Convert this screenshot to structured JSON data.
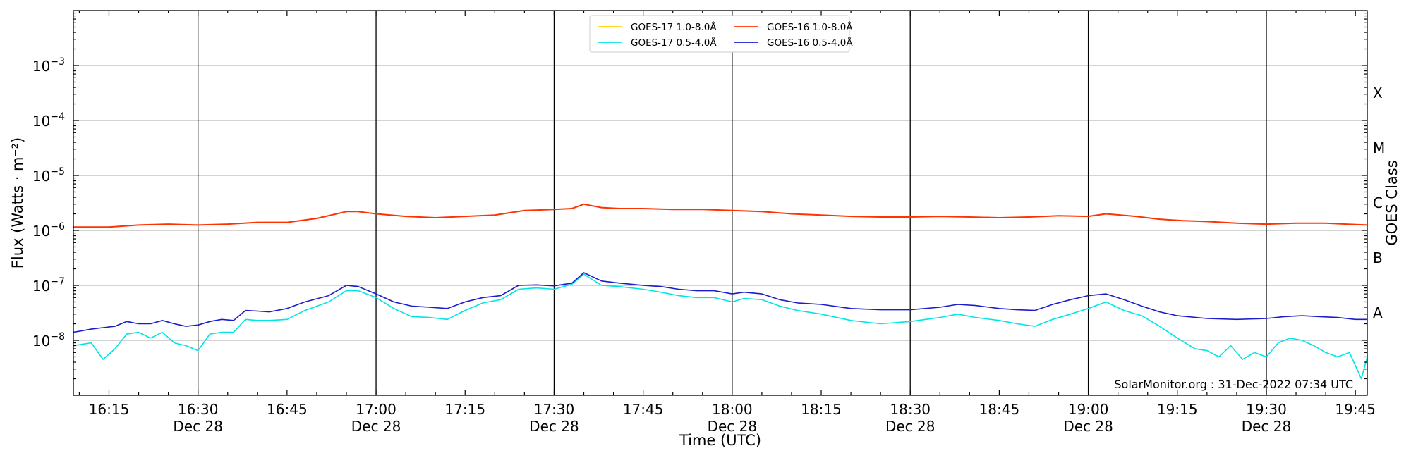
{
  "chart_data": {
    "type": "line",
    "xlabel": "Time (UTC)",
    "ylabel": "Flux (Watts · m⁻²)",
    "right_label": "GOES Class",
    "watermark": "SolarMonitor.org : 31-Dec-2022 07:34 UTC",
    "y_scale": "log",
    "ylim": [
      1e-09,
      0.01
    ],
    "x_range": [
      "16:09",
      "19:47"
    ],
    "grid": "horizontal at each decade",
    "legend_position": "top-center",
    "x_ticks": [
      {
        "time": "16:15",
        "date": ""
      },
      {
        "time": "16:30",
        "date": "Dec 28"
      },
      {
        "time": "16:45",
        "date": ""
      },
      {
        "time": "17:00",
        "date": "Dec 28"
      },
      {
        "time": "17:15",
        "date": ""
      },
      {
        "time": "17:30",
        "date": "Dec 28"
      },
      {
        "time": "17:45",
        "date": ""
      },
      {
        "time": "18:00",
        "date": "Dec 28"
      },
      {
        "time": "18:15",
        "date": ""
      },
      {
        "time": "18:30",
        "date": "Dec 28"
      },
      {
        "time": "18:45",
        "date": ""
      },
      {
        "time": "19:00",
        "date": "Dec 28"
      },
      {
        "time": "19:15",
        "date": ""
      },
      {
        "time": "19:30",
        "date": "Dec 28"
      },
      {
        "time": "19:45",
        "date": ""
      }
    ],
    "vertical_lines": [
      "16:30",
      "17:00",
      "17:30",
      "18:00",
      "18:30",
      "19:00",
      "19:30"
    ],
    "y_ticks": [
      {
        "value": 1e-08,
        "mantissa": "10",
        "exp": "−8"
      },
      {
        "value": 1e-07,
        "mantissa": "10",
        "exp": "−7"
      },
      {
        "value": 1e-06,
        "mantissa": "10",
        "exp": "−6"
      },
      {
        "value": 1e-05,
        "mantissa": "10",
        "exp": "−5"
      },
      {
        "value": 0.0001,
        "mantissa": "10",
        "exp": "−4"
      },
      {
        "value": 0.001,
        "mantissa": "10",
        "exp": "−3"
      }
    ],
    "goes_classes": [
      {
        "label": "A",
        "value": 1e-08
      },
      {
        "label": "B",
        "value": 1e-07
      },
      {
        "label": "C",
        "value": 1e-06
      },
      {
        "label": "M",
        "value": 1e-05
      },
      {
        "label": "X",
        "value": 0.0001
      }
    ],
    "series": [
      {
        "name": "GOES-17 1.0-8.0Å",
        "color": "#ffd700",
        "x": [],
        "y": []
      },
      {
        "name": "GOES-17 0.5-4.0Å",
        "color": "#00e5e5",
        "x": [
          "16:09",
          "16:12",
          "16:14",
          "16:16",
          "16:18",
          "16:20",
          "16:22",
          "16:24",
          "16:26",
          "16:28",
          "16:30",
          "16:32",
          "16:34",
          "16:36",
          "16:38",
          "16:40",
          "16:42",
          "16:45",
          "16:48",
          "16:52",
          "16:55",
          "16:57",
          "17:00",
          "17:03",
          "17:06",
          "17:09",
          "17:12",
          "17:15",
          "17:18",
          "17:21",
          "17:24",
          "17:27",
          "17:30",
          "17:33",
          "17:35",
          "17:38",
          "17:41",
          "17:45",
          "17:48",
          "17:51",
          "17:54",
          "17:57",
          "18:00",
          "18:02",
          "18:05",
          "18:08",
          "18:11",
          "18:15",
          "18:20",
          "18:25",
          "18:30",
          "18:35",
          "18:38",
          "18:41",
          "18:45",
          "18:48",
          "18:51",
          "18:54",
          "18:57",
          "19:00",
          "19:03",
          "19:06",
          "19:09",
          "19:12",
          "19:15",
          "19:18",
          "19:20",
          "19:22",
          "19:24",
          "19:26",
          "19:28",
          "19:30",
          "19:32",
          "19:34",
          "19:36",
          "19:38",
          "19:40",
          "19:42",
          "19:44",
          "19:46",
          "19:47"
        ],
        "y": [
          8e-09,
          9e-09,
          4.5e-09,
          7e-09,
          1.3e-08,
          1.4e-08,
          1.1e-08,
          1.4e-08,
          9e-09,
          8e-09,
          6.5e-09,
          1.3e-08,
          1.4e-08,
          1.4e-08,
          2.4e-08,
          2.3e-08,
          2.3e-08,
          2.4e-08,
          3.5e-08,
          5e-08,
          8e-08,
          8e-08,
          6e-08,
          3.8e-08,
          2.7e-08,
          2.6e-08,
          2.4e-08,
          3.5e-08,
          4.8e-08,
          5.5e-08,
          8.5e-08,
          9e-08,
          8.5e-08,
          1.05e-07,
          1.6e-07,
          1e-07,
          9.5e-08,
          8.5e-08,
          7.5e-08,
          6.5e-08,
          6e-08,
          6e-08,
          5e-08,
          5.8e-08,
          5.5e-08,
          4.2e-08,
          3.5e-08,
          3e-08,
          2.3e-08,
          2e-08,
          2.2e-08,
          2.6e-08,
          3e-08,
          2.6e-08,
          2.3e-08,
          2e-08,
          1.8e-08,
          2.4e-08,
          3e-08,
          3.8e-08,
          5e-08,
          3.5e-08,
          2.8e-08,
          1.8e-08,
          1.1e-08,
          7e-09,
          6.5e-09,
          5e-09,
          8e-09,
          4.5e-09,
          6e-09,
          5e-09,
          9e-09,
          1.1e-08,
          1e-08,
          8e-09,
          6e-09,
          5e-09,
          6e-09,
          2e-09,
          5e-09
        ]
      },
      {
        "name": "GOES-16 1.0-8.0Å",
        "color": "#ff3300",
        "x": [
          "16:09",
          "16:15",
          "16:20",
          "16:25",
          "16:30",
          "16:35",
          "16:40",
          "16:45",
          "16:50",
          "16:55",
          "16:57",
          "17:00",
          "17:05",
          "17:10",
          "17:15",
          "17:20",
          "17:25",
          "17:30",
          "17:33",
          "17:35",
          "17:38",
          "17:41",
          "17:45",
          "17:50",
          "17:55",
          "18:00",
          "18:05",
          "18:10",
          "18:15",
          "18:20",
          "18:25",
          "18:30",
          "18:35",
          "18:40",
          "18:45",
          "18:50",
          "18:55",
          "19:00",
          "19:03",
          "19:08",
          "19:12",
          "19:16",
          "19:20",
          "19:25",
          "19:30",
          "19:35",
          "19:40",
          "19:47"
        ],
        "y": [
          1.15e-06,
          1.15e-06,
          1.25e-06,
          1.3e-06,
          1.25e-06,
          1.3e-06,
          1.4e-06,
          1.4e-06,
          1.65e-06,
          2.2e-06,
          2.2e-06,
          2e-06,
          1.8e-06,
          1.7e-06,
          1.8e-06,
          1.9e-06,
          2.3e-06,
          2.4e-06,
          2.5e-06,
          3e-06,
          2.6e-06,
          2.5e-06,
          2.5e-06,
          2.4e-06,
          2.4e-06,
          2.3e-06,
          2.2e-06,
          2e-06,
          1.9e-06,
          1.8e-06,
          1.75e-06,
          1.75e-06,
          1.8e-06,
          1.75e-06,
          1.7e-06,
          1.75e-06,
          1.85e-06,
          1.8e-06,
          2e-06,
          1.8e-06,
          1.6e-06,
          1.5e-06,
          1.45e-06,
          1.35e-06,
          1.3e-06,
          1.35e-06,
          1.35e-06,
          1.25e-06
        ]
      },
      {
        "name": "GOES-16 0.5-4.0Å",
        "color": "#1c1ccc",
        "x": [
          "16:09",
          "16:12",
          "16:14",
          "16:16",
          "16:18",
          "16:20",
          "16:22",
          "16:24",
          "16:26",
          "16:28",
          "16:30",
          "16:32",
          "16:34",
          "16:36",
          "16:38",
          "16:40",
          "16:42",
          "16:45",
          "16:48",
          "16:52",
          "16:55",
          "16:57",
          "17:00",
          "17:03",
          "17:06",
          "17:09",
          "17:12",
          "17:15",
          "17:18",
          "17:21",
          "17:24",
          "17:27",
          "17:30",
          "17:33",
          "17:35",
          "17:38",
          "17:41",
          "17:45",
          "17:48",
          "17:51",
          "17:54",
          "17:57",
          "18:00",
          "18:02",
          "18:05",
          "18:08",
          "18:11",
          "18:15",
          "18:20",
          "18:25",
          "18:30",
          "18:35",
          "18:38",
          "18:41",
          "18:45",
          "18:48",
          "18:51",
          "18:54",
          "18:57",
          "19:00",
          "19:03",
          "19:06",
          "19:09",
          "19:12",
          "19:15",
          "19:20",
          "19:25",
          "19:30",
          "19:33",
          "19:36",
          "19:39",
          "19:42",
          "19:45",
          "19:47"
        ],
        "y": [
          1.4e-08,
          1.6e-08,
          1.7e-08,
          1.8e-08,
          2.2e-08,
          2e-08,
          2e-08,
          2.3e-08,
          2e-08,
          1.8e-08,
          1.9e-08,
          2.2e-08,
          2.4e-08,
          2.3e-08,
          3.5e-08,
          3.4e-08,
          3.3e-08,
          3.8e-08,
          5e-08,
          6.5e-08,
          1e-07,
          9.5e-08,
          7e-08,
          5e-08,
          4.2e-08,
          4e-08,
          3.8e-08,
          5e-08,
          6e-08,
          6.5e-08,
          1e-07,
          1.02e-07,
          9.8e-08,
          1.1e-07,
          1.7e-07,
          1.2e-07,
          1.1e-07,
          1e-07,
          9.5e-08,
          8.5e-08,
          8e-08,
          8e-08,
          7e-08,
          7.5e-08,
          7e-08,
          5.5e-08,
          4.8e-08,
          4.5e-08,
          3.8e-08,
          3.6e-08,
          3.6e-08,
          4e-08,
          4.5e-08,
          4.3e-08,
          3.8e-08,
          3.6e-08,
          3.5e-08,
          4.5e-08,
          5.5e-08,
          6.5e-08,
          7e-08,
          5.5e-08,
          4.2e-08,
          3.3e-08,
          2.8e-08,
          2.5e-08,
          2.4e-08,
          2.5e-08,
          2.7e-08,
          2.8e-08,
          2.7e-08,
          2.6e-08,
          2.4e-08,
          2.4e-08
        ]
      }
    ]
  }
}
